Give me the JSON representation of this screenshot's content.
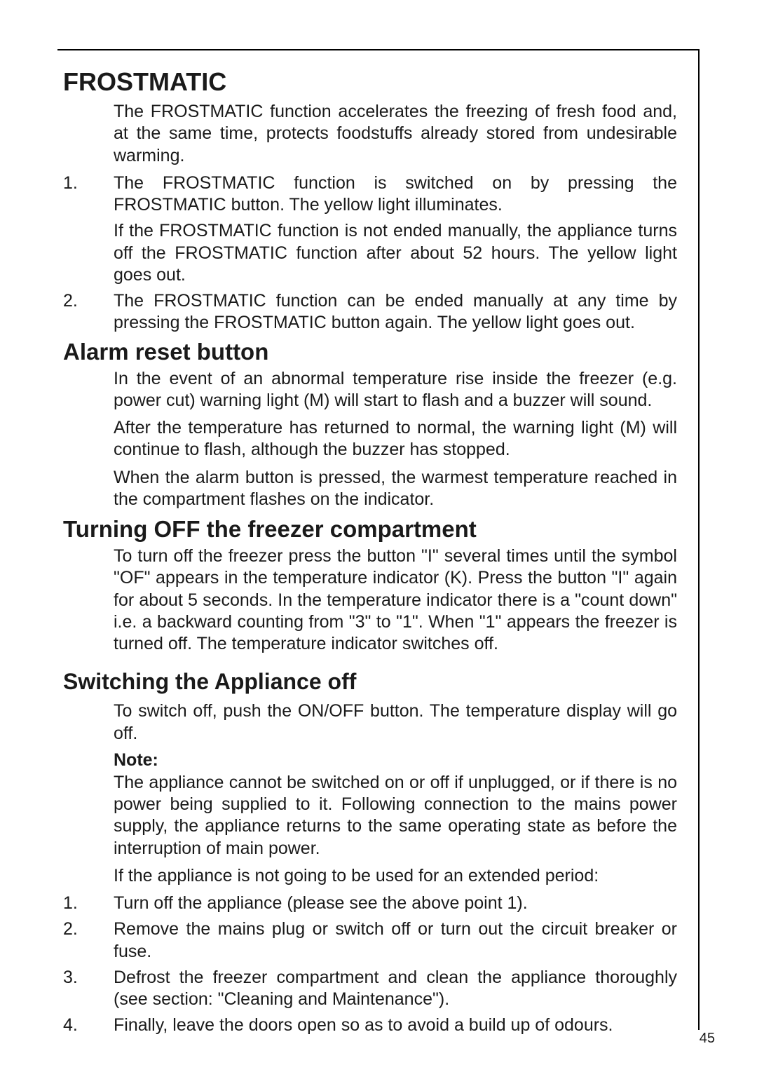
{
  "page_number": "45",
  "sections": {
    "frostmatic": {
      "title": "FROSTMATIC",
      "intro": "The FROSTMATIC function accelerates the freezing of fresh food and, at the same time, protects foodstuffs already stored from undesirable warming.",
      "item1_num": "1.",
      "item1_text": "The FROSTMATIC function is switched on by pressing the FROSTMATIC button. The yellow light illuminates.",
      "item1_sub": "If the FROSTMATIC function is not ended manually, the appliance turns  off the FROSTMATIC function after about 52 hours. The yellow light goes out.",
      "item2_num": "2.",
      "item2_text": "The FROSTMATIC function can be ended manually at any time by pressing the FROSTMATIC button again. The yellow light goes out."
    },
    "alarm": {
      "title": "Alarm reset button",
      "p1": "In the event of an abnormal temperature rise inside the freezer (e.g. power cut) warning light (M) will start to flash and a buzzer will sound.",
      "p2": "After the temperature has returned to normal, the warning light (M) will continue to flash, although the buzzer has stopped.",
      "p3": "When the alarm button is pressed, the warmest temperature reached in the compartment flashes on the indicator."
    },
    "turnoff": {
      "title": "Turning OFF the freezer compartment",
      "p1": "To turn off the freezer press the button \"I\" several times until the symbol \"OF\" appears in the temperature indicator (K). Press the button \"I\" again for about 5 seconds. In the temperature indicator there is a \"count down\" i.e. a backward counting from \"3\" to \"1\". When \"1\" appears the freezer is turned off. The temperature indicator switches off."
    },
    "switchoff": {
      "title": "Switching the Appliance off",
      "p1": "To switch off, push the ON/OFF button. The temperature display will go off.",
      "note_label": "Note:",
      "p2": "The appliance cannot be switched on or off if unplugged, or if there is no power being supplied to it. Following connection to the mains power supply, the appliance returns to the same operating state as before the interruption of main power.",
      "p3": "If the appliance is not going to be used for an extended period:",
      "item1_num": "1.",
      "item1_text": "Turn off the appliance (please see the above point 1).",
      "item2_num": "2.",
      "item2_text": "Remove the mains plug or switch off or turn out the circuit breaker or fuse.",
      "item3_num": "3.",
      "item3_text": "Defrost the freezer compartment and clean the appliance thoroughly (see section: \"Cleaning and Maintenance\").",
      "item4_num": "4.",
      "item4_text": "Finally, leave the doors open so as to avoid a build up of odours."
    }
  }
}
